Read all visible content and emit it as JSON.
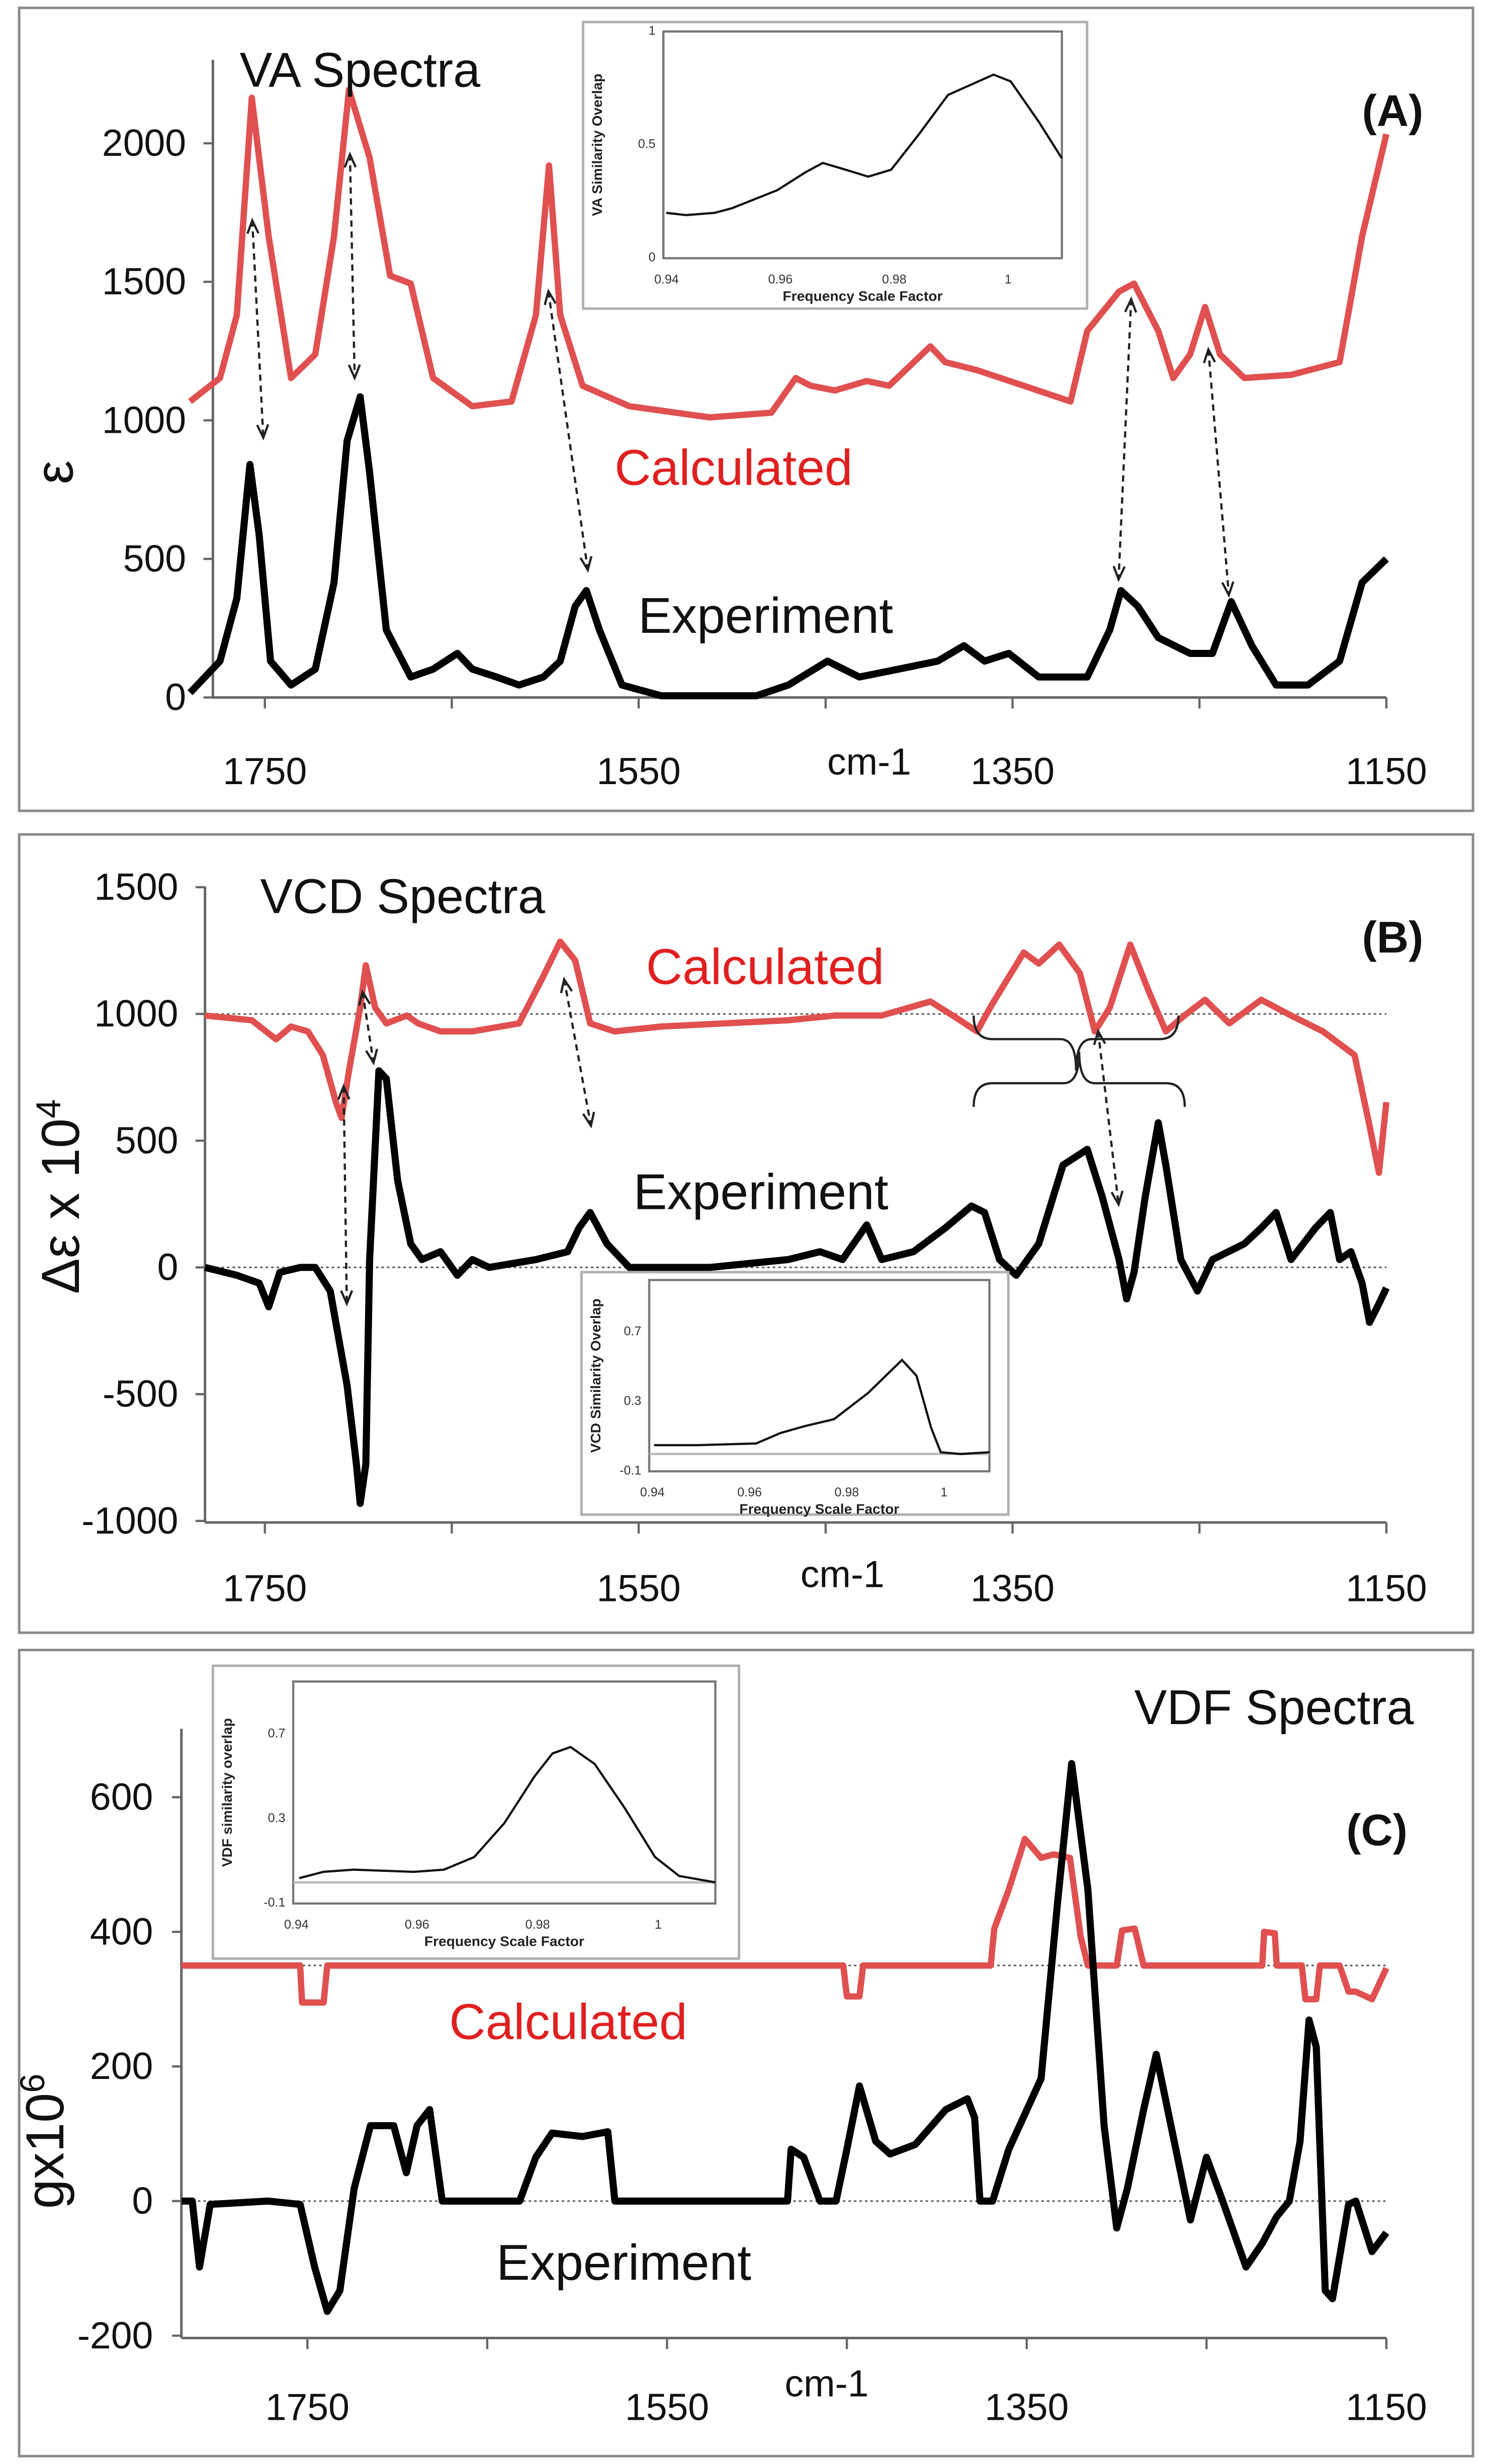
{
  "chart_data": [
    {
      "type": "line",
      "panel_tag": "(A)",
      "title": "VA Spectra",
      "xlabel": "cm-1",
      "ylabel": "ε",
      "xlim": [
        1790,
        1150
      ],
      "ylim": [
        0,
        2300
      ],
      "xticks": [
        1750,
        1550,
        1350,
        1150
      ],
      "yticks": [
        0,
        500,
        1000,
        1500,
        2000
      ],
      "series": [
        {
          "name": "Calculated",
          "color": "#e05050",
          "x": [
            1790,
            1774,
            1765,
            1757,
            1748,
            1736,
            1723,
            1713,
            1705,
            1694,
            1683,
            1672,
            1660,
            1639,
            1618,
            1605,
            1598,
            1592,
            1580,
            1555,
            1512,
            1479,
            1466,
            1458,
            1445,
            1428,
            1416,
            1394,
            1386,
            1369,
            1344,
            1319,
            1310,
            1293,
            1285,
            1272,
            1264,
            1255,
            1247,
            1239,
            1226,
            1201,
            1175,
            1163,
            1150
          ],
          "y": [
            1068,
            1153,
            1380,
            2164,
            1664,
            1153,
            1238,
            1664,
            2193,
            1948,
            1522,
            1494,
            1153,
            1051,
            1068,
            1380,
            1920,
            1380,
            1125,
            1051,
            1011,
            1028,
            1153,
            1125,
            1108,
            1142,
            1125,
            1267,
            1210,
            1181,
            1125,
            1068,
            1323,
            1465,
            1494,
            1323,
            1153,
            1238,
            1409,
            1238,
            1153,
            1164,
            1210,
            1664,
            2033
          ]
        },
        {
          "name": "Experiment",
          "color": "#000000",
          "x": [
            1790,
            1774,
            1765,
            1758,
            1753,
            1747,
            1736,
            1723,
            1713,
            1706,
            1699,
            1694,
            1685,
            1672,
            1660,
            1647,
            1639,
            1626,
            1614,
            1601,
            1592,
            1584,
            1578,
            1571,
            1559,
            1538,
            1487,
            1470,
            1449,
            1432,
            1411,
            1390,
            1376,
            1365,
            1352,
            1336,
            1310,
            1298,
            1292,
            1283,
            1272,
            1255,
            1243,
            1233,
            1222,
            1209,
            1192,
            1175,
            1163,
            1150
          ],
          "y": [
            17,
            131,
            358,
            841,
            585,
            131,
            45,
            102,
            415,
            926,
            1085,
            812,
            244,
            74,
            102,
            159,
            102,
            74,
            45,
            74,
            131,
            329,
            386,
            244,
            45,
            6,
            6,
            45,
            131,
            74,
            102,
            131,
            187,
            131,
            159,
            74,
            74,
            244,
            386,
            329,
            216,
            159,
            159,
            346,
            187,
            45,
            45,
            131,
            415,
            500
          ]
        }
      ],
      "inset": {
        "xlabel": "Frequency Scale Factor",
        "ylabel": "VA Similarity Overlap",
        "xlim": [
          0.94,
          1.01
        ],
        "ylim": [
          0,
          1
        ],
        "xticks": [
          "0.94",
          "0.96",
          "0.98",
          "1"
        ],
        "yticks": [
          "0",
          "0.5",
          "1"
        ],
        "x": [
          0.9405,
          0.944,
          0.949,
          0.952,
          0.96,
          0.965,
          0.968,
          0.972,
          0.976,
          0.98,
          0.985,
          0.99,
          0.998,
          1.001,
          1.006,
          1.01
        ],
        "y": [
          0.2,
          0.19,
          0.2,
          0.22,
          0.3,
          0.38,
          0.42,
          0.39,
          0.36,
          0.39,
          0.55,
          0.72,
          0.81,
          0.78,
          0.6,
          0.44
        ]
      }
    },
    {
      "type": "line",
      "panel_tag": "(B)",
      "title": "VCD Spectra",
      "xlabel": "cm-1",
      "ylabel": "Δε x 10",
      "ylabel_sup": "4",
      "xlim": [
        1790,
        1150
      ],
      "ylim": [
        -1000,
        1500
      ],
      "xticks": [
        1750,
        1550,
        1350,
        1150
      ],
      "yticks": [
        -1000,
        -500,
        0,
        500,
        1000,
        1500
      ],
      "series": [
        {
          "name": "Calculated",
          "color": "#e05050",
          "x": [
            1782,
            1757,
            1744,
            1736,
            1727,
            1719,
            1712,
            1709,
            1705,
            1699,
            1696,
            1691,
            1685,
            1674,
            1668,
            1656,
            1639,
            1614,
            1601,
            1592,
            1584,
            1576,
            1563,
            1538,
            1504,
            1470,
            1445,
            1420,
            1394,
            1382,
            1369,
            1361,
            1344,
            1336,
            1325,
            1314,
            1306,
            1298,
            1287,
            1277,
            1268,
            1258,
            1247,
            1234,
            1217,
            1201,
            1184,
            1167,
            1159,
            1154,
            1150
          ],
          "y": [
            994,
            975,
            900,
            950,
            931,
            838,
            652,
            590,
            776,
            1025,
            1192,
            1025,
            963,
            994,
            963,
            931,
            931,
            963,
            1149,
            1285,
            1211,
            963,
            931,
            950,
            963,
            975,
            994,
            994,
            1049,
            994,
            931,
            1037,
            1242,
            1199,
            1273,
            1161,
            931,
            1025,
            1273,
            1087,
            931,
            994,
            1056,
            963,
            1056,
            994,
            931,
            838,
            559,
            373,
            652
          ]
        },
        {
          "name": "Experiment",
          "color": "#000000",
          "x": [
            1782,
            1765,
            1753,
            1748,
            1742,
            1731,
            1723,
            1715,
            1706,
            1701,
            1699,
            1696,
            1694,
            1689,
            1685,
            1679,
            1672,
            1666,
            1656,
            1647,
            1639,
            1630,
            1605,
            1588,
            1582,
            1576,
            1567,
            1555,
            1512,
            1470,
            1453,
            1441,
            1428,
            1420,
            1403,
            1386,
            1372,
            1365,
            1357,
            1348,
            1336,
            1323,
            1310,
            1302,
            1293,
            1289,
            1285,
            1279,
            1272,
            1268,
            1260,
            1251,
            1243,
            1226,
            1217,
            1209,
            1201,
            1188,
            1180,
            1175,
            1169,
            1163,
            1159,
            1154,
            1150
          ],
          "y": [
            0,
            -31,
            -62,
            -155,
            -19,
            0,
            0,
            -93,
            -466,
            -776,
            -931,
            -776,
            31,
            776,
            745,
            342,
            93,
            31,
            62,
            -31,
            31,
            0,
            31,
            62,
            155,
            217,
            93,
            0,
            0,
            31,
            62,
            31,
            168,
            31,
            62,
            155,
            242,
            217,
            31,
            -31,
            93,
            404,
            466,
            279,
            31,
            -124,
            -19,
            279,
            571,
            404,
            31,
            -93,
            31,
            93,
            155,
            217,
            31,
            155,
            217,
            31,
            62,
            -62,
            -217,
            -143,
            -81
          ]
        }
      ],
      "inset": {
        "xlabel": "Frequency Scale Factor",
        "ylabel": "VCD Similarity Overlap",
        "xlim": [
          0.94,
          1.01
        ],
        "ylim": [
          -0.1,
          1.0
        ],
        "xticks": [
          "0.94",
          "0.96",
          "0.98",
          "1"
        ],
        "yticks": [
          "-0.1",
          "0.3",
          "0.7"
        ],
        "x": [
          0.941,
          0.95,
          0.962,
          0.967,
          0.972,
          0.978,
          0.985,
          0.992,
          0.995,
          0.998,
          1.0,
          1.004,
          1.01
        ],
        "y": [
          0.05,
          0.05,
          0.06,
          0.12,
          0.16,
          0.2,
          0.35,
          0.54,
          0.45,
          0.15,
          0.01,
          0.0,
          0.01
        ]
      }
    },
    {
      "type": "line",
      "panel_tag": "(C)",
      "title": "VDF Spectra",
      "xlabel": "cm-1",
      "ylabel": "gx10",
      "ylabel_sup": "6",
      "xlim": [
        1820,
        1150
      ],
      "ylim": [
        -200,
        700
      ],
      "xticks": [
        1750,
        1550,
        1350,
        1150
      ],
      "yticks": [
        -200,
        0,
        200,
        400,
        600
      ],
      "series": [
        {
          "name": "Calculated",
          "color": "#e05050",
          "x": [
            1820,
            1754,
            1753,
            1741,
            1739,
            1452,
            1450,
            1443,
            1441,
            1370,
            1368,
            1360,
            1351,
            1342,
            1335,
            1326,
            1320,
            1316,
            1300,
            1297,
            1290,
            1285,
            1219,
            1218,
            1212,
            1211,
            1197,
            1195,
            1189,
            1187,
            1176,
            1171,
            1167,
            1158,
            1150
          ],
          "y": [
            350,
            350,
            295,
            295,
            350,
            350,
            304,
            304,
            350,
            350,
            405,
            463,
            538,
            510,
            515,
            510,
            393,
            350,
            350,
            402,
            405,
            350,
            350,
            400,
            398,
            350,
            350,
            300,
            300,
            350,
            350,
            311,
            311,
            300,
            346
          ]
        },
        {
          "name": "Experiment",
          "color": "#000000",
          "x": [
            1820,
            1814,
            1810,
            1804,
            1772,
            1754,
            1746,
            1739,
            1732,
            1724,
            1715,
            1702,
            1695,
            1689,
            1682,
            1675,
            1632,
            1623,
            1614,
            1597,
            1583,
            1579,
            1483,
            1481,
            1474,
            1465,
            1456,
            1450,
            1443,
            1434,
            1426,
            1412,
            1395,
            1383,
            1379,
            1376,
            1369,
            1360,
            1342,
            1333,
            1325,
            1316,
            1307,
            1300,
            1294,
            1285,
            1278,
            1268,
            1259,
            1250,
            1241,
            1228,
            1219,
            1211,
            1204,
            1198,
            1193,
            1189,
            1184,
            1180,
            1171,
            1167,
            1158,
            1150
          ],
          "y": [
            0,
            0,
            -98,
            -5,
            0,
            -5,
            -98,
            -164,
            -133,
            19,
            112,
            112,
            42,
            112,
            136,
            0,
            0,
            65,
            101,
            96,
            103,
            0,
            0,
            77,
            65,
            0,
            0,
            77,
            171,
            89,
            70,
            84,
            136,
            152,
            124,
            0,
            0,
            77,
            182,
            440,
            650,
            463,
            112,
            -40,
            19,
            136,
            218,
            89,
            -28,
            65,
            0,
            -98,
            -63,
            -23,
            0,
            89,
            269,
            229,
            -133,
            -145,
            -5,
            0,
            -75,
            -47
          ]
        }
      ],
      "inset": {
        "xlabel": "Frequency Scale Factor",
        "ylabel": "VDF  similarity overlap",
        "xlim": [
          0.94,
          1.01
        ],
        "ylim": [
          -0.1,
          0.95
        ],
        "xticks": [
          "0.94",
          "0.96",
          "0.98",
          "1"
        ],
        "yticks": [
          "-0.1",
          "0.3",
          "0.7"
        ],
        "x": [
          0.941,
          0.945,
          0.95,
          0.96,
          0.965,
          0.97,
          0.975,
          0.98,
          0.983,
          0.986,
          0.99,
          0.995,
          1.0,
          1.004,
          1.008,
          1.01
        ],
        "y": [
          0.02,
          0.05,
          0.06,
          0.05,
          0.06,
          0.12,
          0.28,
          0.5,
          0.61,
          0.64,
          0.56,
          0.35,
          0.12,
          0.03,
          0.01,
          0.0
        ]
      }
    }
  ]
}
